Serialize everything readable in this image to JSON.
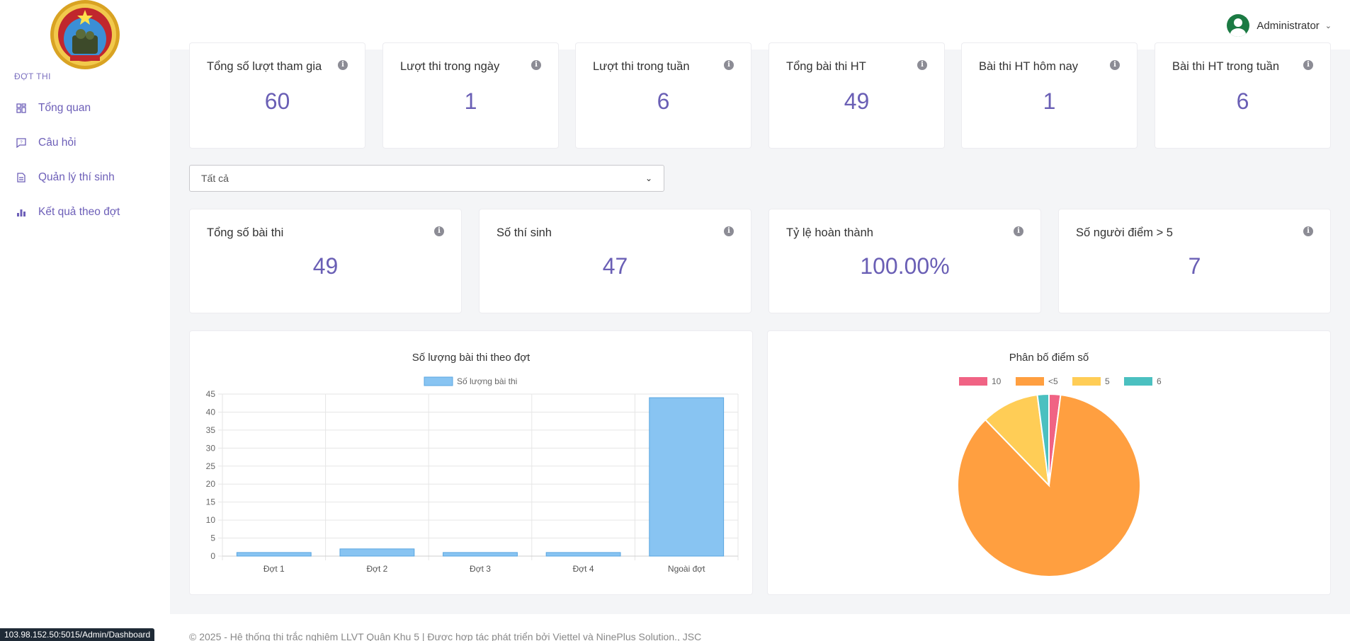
{
  "sidebar": {
    "section_label": "ĐỢT THI",
    "items": [
      {
        "label": "Tổng quan",
        "icon": "dashboard-icon"
      },
      {
        "label": "Câu hỏi",
        "icon": "question-icon"
      },
      {
        "label": "Quản lý thí sinh",
        "icon": "document-icon"
      },
      {
        "label": "Kết quả theo đợt",
        "icon": "bar-chart-icon"
      }
    ]
  },
  "header": {
    "user_name": "Administrator"
  },
  "top_stats": [
    {
      "title": "Tổng số lượt tham gia",
      "value": "60"
    },
    {
      "title": "Lượt thi trong ngày",
      "value": "1"
    },
    {
      "title": "Lượt thi trong tuần",
      "value": "6"
    },
    {
      "title": "Tổng bài thi HT",
      "value": "49"
    },
    {
      "title": "Bài thi HT hôm nay",
      "value": "1"
    },
    {
      "title": "Bài thi HT trong tuần",
      "value": "6"
    }
  ],
  "filter": {
    "selected": "Tất cả"
  },
  "mid_stats": [
    {
      "title": "Tổng số bài thi",
      "value": "49"
    },
    {
      "title": "Số thí sinh",
      "value": "47"
    },
    {
      "title": "Tỷ lệ hoàn thành",
      "value": "100.00%"
    },
    {
      "title": "Số người điểm > 5",
      "value": "7"
    }
  ],
  "chart_data": [
    {
      "type": "bar",
      "title": "Số lượng bài thi theo đợt",
      "categories": [
        "Đợt 1",
        "Đợt 2",
        "Đợt 3",
        "Đợt 4",
        "Ngoài đợt"
      ],
      "series": [
        {
          "name": "Số lượng bài thi",
          "values": [
            1,
            2,
            1,
            1,
            44
          ],
          "color": "#88c4f2"
        }
      ],
      "ylim": [
        0,
        45
      ],
      "yticks": [
        0,
        5,
        10,
        15,
        20,
        25,
        30,
        35,
        40,
        45
      ],
      "legend": "top",
      "grid": true
    },
    {
      "type": "pie",
      "title": "Phân bố điểm số",
      "labels": [
        "10",
        "<5",
        "5",
        "6"
      ],
      "values": [
        1,
        42,
        5,
        1
      ],
      "colors": [
        "#f06384",
        "#ff9f40",
        "#ffcd56",
        "#4bc0c0"
      ],
      "legend": "top"
    }
  ],
  "footer": {
    "text": "© 2025 - Hệ thống thi trắc nghiệm LLVT Quân Khu 5 | Được hợp tác phát triển bởi Viettel và NinePlus Solution., JSC"
  },
  "status_url": "103.98.152.50:5015/Admin/Dashboard"
}
